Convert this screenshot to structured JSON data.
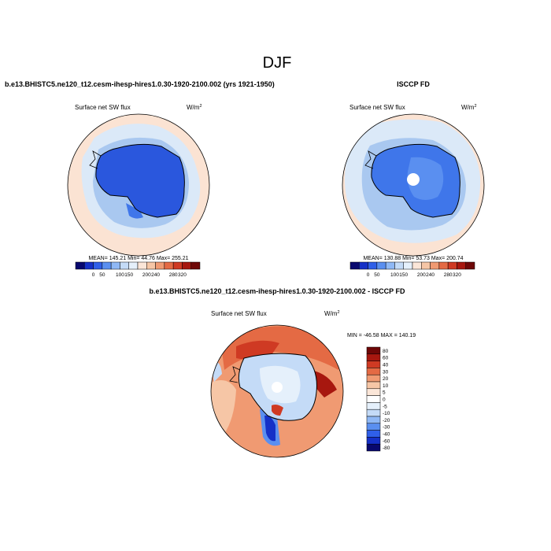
{
  "figure": {
    "title": "DJF"
  },
  "chart_data": [
    {
      "type": "heatmap",
      "projection": "south-polar-stereographic",
      "title": "b.e13.BHISTC5.ne120_t12.cesm-ihesp-hires1.0.30-1920-2100.002 (yrs 1921-1950)",
      "variable": "Surface net SW flux",
      "units": "W/m",
      "units_exp": "2",
      "stats": "MEAN= 145.21  Min=  44.76  Max= 255.21",
      "levels": [
        "0",
        "50",
        "100",
        "150",
        "200",
        "240",
        "280",
        "320"
      ],
      "colorbar_colors": [
        "#08086e",
        "#1530c7",
        "#2f5fe8",
        "#5a8ff0",
        "#8fb8f5",
        "#c4dbf7",
        "#e5f0fb",
        "#fbe6d8",
        "#f6c6a6",
        "#f09a72",
        "#e46a44",
        "#cf3a23",
        "#a7170f",
        "#6e0707"
      ],
      "colorbar_placement": "bottom"
    },
    {
      "type": "heatmap",
      "projection": "south-polar-stereographic",
      "title": "ISCCP FD",
      "variable": "Surface net SW flux",
      "units": "W/m",
      "units_exp": "2",
      "stats": "MEAN= 130.88  Min=  53.73  Max= 200.74",
      "levels": [
        "0",
        "50",
        "100",
        "150",
        "200",
        "240",
        "280",
        "320"
      ],
      "colorbar_colors": [
        "#08086e",
        "#1530c7",
        "#2f5fe8",
        "#5a8ff0",
        "#8fb8f5",
        "#c4dbf7",
        "#e5f0fb",
        "#fbe6d8",
        "#f6c6a6",
        "#f09a72",
        "#e46a44",
        "#cf3a23",
        "#a7170f",
        "#6e0707"
      ],
      "colorbar_placement": "bottom"
    },
    {
      "type": "heatmap",
      "projection": "south-polar-stereographic",
      "title": "b.e13.BHISTC5.ne120_t12.cesm-ihesp-hires1.0.30-1920-2100.002 - ISCCP FD",
      "variable": "Surface net SW flux",
      "units": "W/m",
      "units_exp": "2",
      "stats": "MIN = -46.58 MAX = 140.19",
      "levels": [
        "80",
        "60",
        "40",
        "30",
        "20",
        "10",
        "5",
        "0",
        "-5",
        "-10",
        "-20",
        "-30",
        "-40",
        "-60",
        "-80"
      ],
      "colorbar_colors": [
        "#6e0707",
        "#a7170f",
        "#cf3a23",
        "#e46a44",
        "#f09a72",
        "#f6c6a6",
        "#fbe6d8",
        "#ffffff",
        "#e5f0fb",
        "#c4dbf7",
        "#8fb8f5",
        "#5a8ff0",
        "#2f5fe8",
        "#1530c7",
        "#08086e"
      ],
      "colorbar_placement": "right"
    }
  ]
}
